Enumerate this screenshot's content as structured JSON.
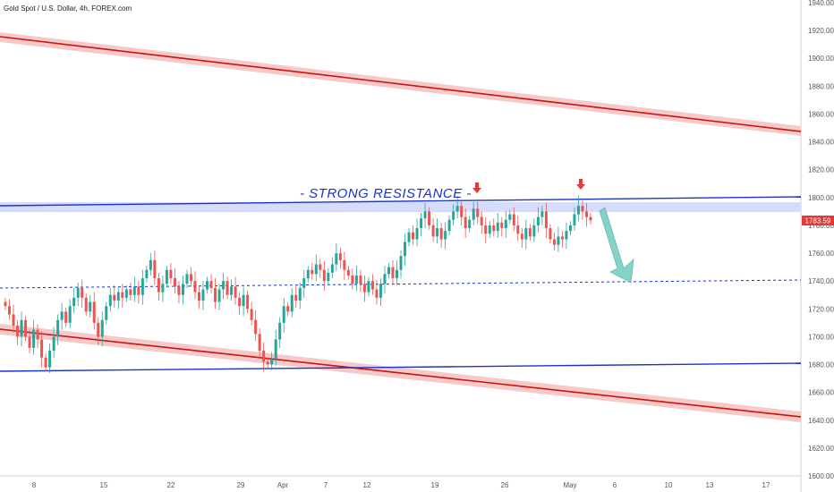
{
  "chart_data": {
    "type": "candlestick",
    "title": "Gold Spot / U.S. Dollar, 4h, FOREX.com",
    "ylim": [
      1600,
      1940
    ],
    "y_ticks": [
      1940,
      1920,
      1900,
      1880,
      1860,
      1840,
      1820,
      1800,
      1780,
      1760,
      1740,
      1720,
      1700,
      1680,
      1660,
      1640,
      1620,
      1600
    ],
    "x_ticks": [
      "8",
      "15",
      "22",
      "29",
      "Apr",
      "7",
      "12",
      "19",
      "26",
      "May",
      "6",
      "10",
      "13",
      "17"
    ],
    "last_price": "1783.59",
    "annotation": "- STRONG RESISTANCE -",
    "colors": {
      "up": "#26a69a",
      "down": "#ef5350",
      "channel": "#cc1111",
      "channel_band": "#f4c0c0",
      "trend": "#1a33cc",
      "resistance_zone": "#d6dcfb",
      "arrow": "#7fd1c6",
      "marker": "#e53935",
      "price_tag": "#e53935"
    },
    "closes": [
      1722,
      1716,
      1708,
      1700,
      1712,
      1700,
      1692,
      1705,
      1698,
      1685,
      1678,
      1690,
      1700,
      1712,
      1718,
      1710,
      1722,
      1728,
      1735,
      1728,
      1718,
      1725,
      1710,
      1700,
      1712,
      1722,
      1730,
      1726,
      1732,
      1728,
      1734,
      1730,
      1736,
      1730,
      1742,
      1748,
      1755,
      1742,
      1732,
      1738,
      1748,
      1742,
      1736,
      1730,
      1738,
      1745,
      1740,
      1732,
      1726,
      1734,
      1740,
      1735,
      1725,
      1734,
      1740,
      1730,
      1736,
      1728,
      1722,
      1730,
      1720,
      1712,
      1702,
      1690,
      1682,
      1680,
      1684,
      1698,
      1710,
      1722,
      1718,
      1730,
      1726,
      1735,
      1742,
      1748,
      1745,
      1752,
      1748,
      1740,
      1746,
      1752,
      1760,
      1755,
      1748,
      1744,
      1738,
      1744,
      1738,
      1732,
      1740,
      1734,
      1728,
      1738,
      1745,
      1750,
      1742,
      1748,
      1758,
      1768,
      1775,
      1770,
      1778,
      1785,
      1790,
      1780,
      1772,
      1778,
      1770,
      1776,
      1784,
      1790,
      1794,
      1786,
      1778,
      1784,
      1792,
      1786,
      1780,
      1774,
      1780,
      1776,
      1782,
      1778,
      1784,
      1788,
      1780,
      1774,
      1770,
      1778,
      1772,
      1780,
      1786,
      1790,
      1778,
      1770,
      1766,
      1772,
      1770,
      1776,
      1780,
      1788,
      1794,
      1790,
      1786,
      1783.59
    ]
  }
}
